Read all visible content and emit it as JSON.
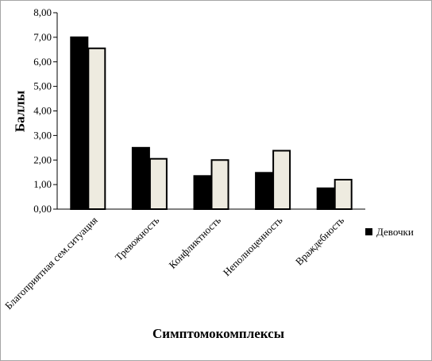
{
  "chart_data": {
    "type": "bar",
    "title": "",
    "xlabel": "Симптомокомплексы",
    "ylabel": "Баллы",
    "ylim": [
      0,
      8
    ],
    "y_ticks": [
      "0,00",
      "1,00",
      "2,00",
      "3,00",
      "4,00",
      "5,00",
      "6,00",
      "7,00",
      "8,00"
    ],
    "grid": false,
    "legend_position": "right",
    "categories": [
      "Благоприятная сем.ситуация",
      "Тревожность",
      "Конфликтность",
      "Неполноценность",
      "Враждебность"
    ],
    "series": [
      {
        "name": "",
        "color": "#000000",
        "values": [
          7.0,
          2.5,
          1.35,
          1.48,
          0.85
        ]
      },
      {
        "name": "Девочки",
        "color": "#eeebe0",
        "values": [
          6.55,
          2.05,
          2.0,
          2.38,
          1.2
        ]
      }
    ]
  }
}
